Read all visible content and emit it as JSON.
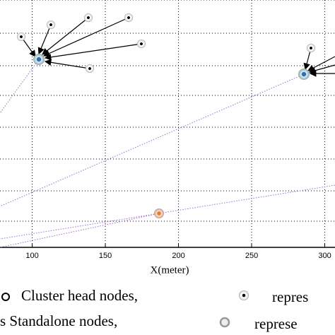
{
  "chart_data": {
    "type": "scatter",
    "xlabel": "X(meter)",
    "xlim": [
      78,
      307
    ],
    "xticks": [
      100,
      150,
      200,
      250,
      300
    ],
    "legend": [
      "Cluster head nodes,",
      "repres",
      "s Standalone nodes,",
      "represe"
    ]
  }
}
